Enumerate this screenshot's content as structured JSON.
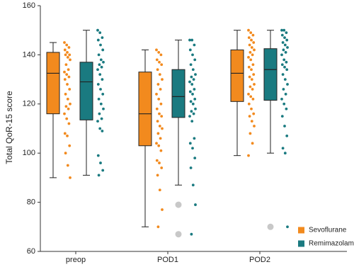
{
  "chart_data": {
    "type": "box",
    "y_label": "Total QoR-15 score",
    "categories": [
      "preop",
      "POD1",
      "POD2"
    ],
    "ylim": [
      60,
      160
    ],
    "yticks": [
      60,
      80,
      100,
      120,
      140,
      160
    ],
    "legend": "lower right",
    "outlier_color": "#c8c8c8",
    "series": [
      {
        "name": "Sevoflurane",
        "color": "#f28a1e",
        "boxes": [
          {
            "min": 90,
            "q1": 116,
            "median": 132.5,
            "q3": 141,
            "max": 145,
            "outliers": []
          },
          {
            "min": 70,
            "q1": 103,
            "median": 116,
            "q3": 133,
            "max": 142,
            "outliers": []
          },
          {
            "min": 99,
            "q1": 121,
            "median": 132.5,
            "q3": 142,
            "max": 150,
            "outliers": []
          }
        ],
        "points": [
          [
            145,
            144,
            143,
            142,
            141,
            140,
            140,
            139,
            138,
            136,
            134,
            133,
            132,
            131,
            130,
            128,
            126,
            124,
            122,
            120,
            119,
            118,
            116,
            114,
            112,
            108,
            107,
            103,
            100,
            95,
            90
          ],
          [
            142,
            141,
            140,
            138,
            137,
            136,
            134,
            132,
            130,
            128,
            126,
            124,
            122,
            120,
            118,
            116,
            115,
            113,
            111,
            110,
            108,
            106,
            104,
            103,
            101,
            97,
            96,
            94,
            91,
            85,
            77,
            70
          ],
          [
            150,
            149,
            148,
            147,
            146,
            145,
            144,
            143,
            142,
            141,
            140,
            139,
            138,
            136,
            135,
            134,
            132,
            131,
            130,
            128,
            127,
            126,
            124,
            123,
            122,
            120,
            118,
            116,
            115,
            113,
            111,
            108,
            104,
            99
          ]
        ]
      },
      {
        "name": "Remimazolam",
        "color": "#1a7a80",
        "boxes": [
          {
            "min": 91,
            "q1": 113.5,
            "median": 129,
            "q3": 137,
            "max": 150,
            "outliers": []
          },
          {
            "min": 87,
            "q1": 114.5,
            "median": 123,
            "q3": 134,
            "max": 146,
            "outliers": [
              79,
              67
            ]
          },
          {
            "min": 100,
            "q1": 121.5,
            "median": 134,
            "q3": 142.5,
            "max": 150,
            "outliers": [
              70
            ]
          }
        ],
        "points": [
          [
            150,
            149,
            147,
            146,
            144,
            142,
            140,
            138,
            137,
            136,
            135,
            134,
            132,
            130,
            128,
            126,
            124,
            122,
            120,
            118,
            116,
            114,
            113,
            110,
            109,
            99,
            96,
            93,
            91
          ],
          [
            146,
            146,
            144,
            142,
            140,
            138,
            136,
            134,
            132,
            131,
            130,
            129,
            128,
            126,
            125,
            124,
            122,
            121,
            120,
            118,
            117,
            116,
            115,
            113,
            106,
            104,
            102,
            98,
            94,
            87,
            79,
            67
          ],
          [
            150,
            150,
            149,
            148,
            147,
            146,
            145,
            144,
            143,
            142,
            141,
            140,
            138,
            137,
            136,
            135,
            134,
            132,
            130,
            128,
            126,
            124,
            122,
            120,
            118,
            115,
            111,
            107,
            102,
            100,
            70
          ]
        ]
      }
    ]
  }
}
